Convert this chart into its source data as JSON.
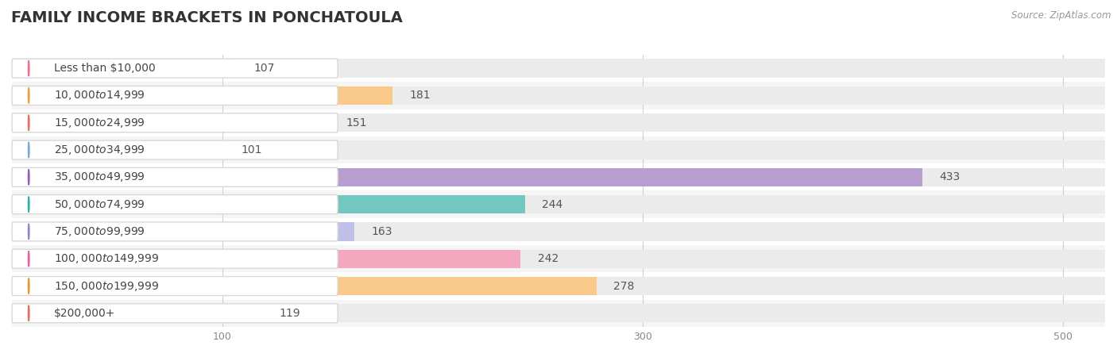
{
  "title": "FAMILY INCOME BRACKETS IN PONCHATOULA",
  "source": "Source: ZipAtlas.com",
  "categories": [
    "Less than $10,000",
    "$10,000 to $14,999",
    "$15,000 to $24,999",
    "$25,000 to $34,999",
    "$35,000 to $49,999",
    "$50,000 to $74,999",
    "$75,000 to $99,999",
    "$100,000 to $149,999",
    "$150,000 to $199,999",
    "$200,000+"
  ],
  "values": [
    107,
    181,
    151,
    101,
    433,
    244,
    163,
    242,
    278,
    119
  ],
  "bar_colors": [
    "#f7b8ca",
    "#f9c98a",
    "#f4a898",
    "#b8cfe8",
    "#b89ed0",
    "#72c8c0",
    "#c0c0e8",
    "#f4a8c0",
    "#f9c98a",
    "#f4a898"
  ],
  "dot_colors": [
    "#f07090",
    "#e8a040",
    "#e87060",
    "#80a8d0",
    "#9060b8",
    "#30b0a8",
    "#8888c8",
    "#e860a0",
    "#e89830",
    "#e07060"
  ],
  "xlim_max": 520,
  "xticks": [
    100,
    300,
    500
  ],
  "bg_color": "#ffffff",
  "row_bg_odd": "#f5f5f5",
  "row_bg_even": "#ffffff",
  "title_fontsize": 14,
  "label_fontsize": 10,
  "value_fontsize": 10,
  "tick_fontsize": 9,
  "bar_height": 0.68
}
